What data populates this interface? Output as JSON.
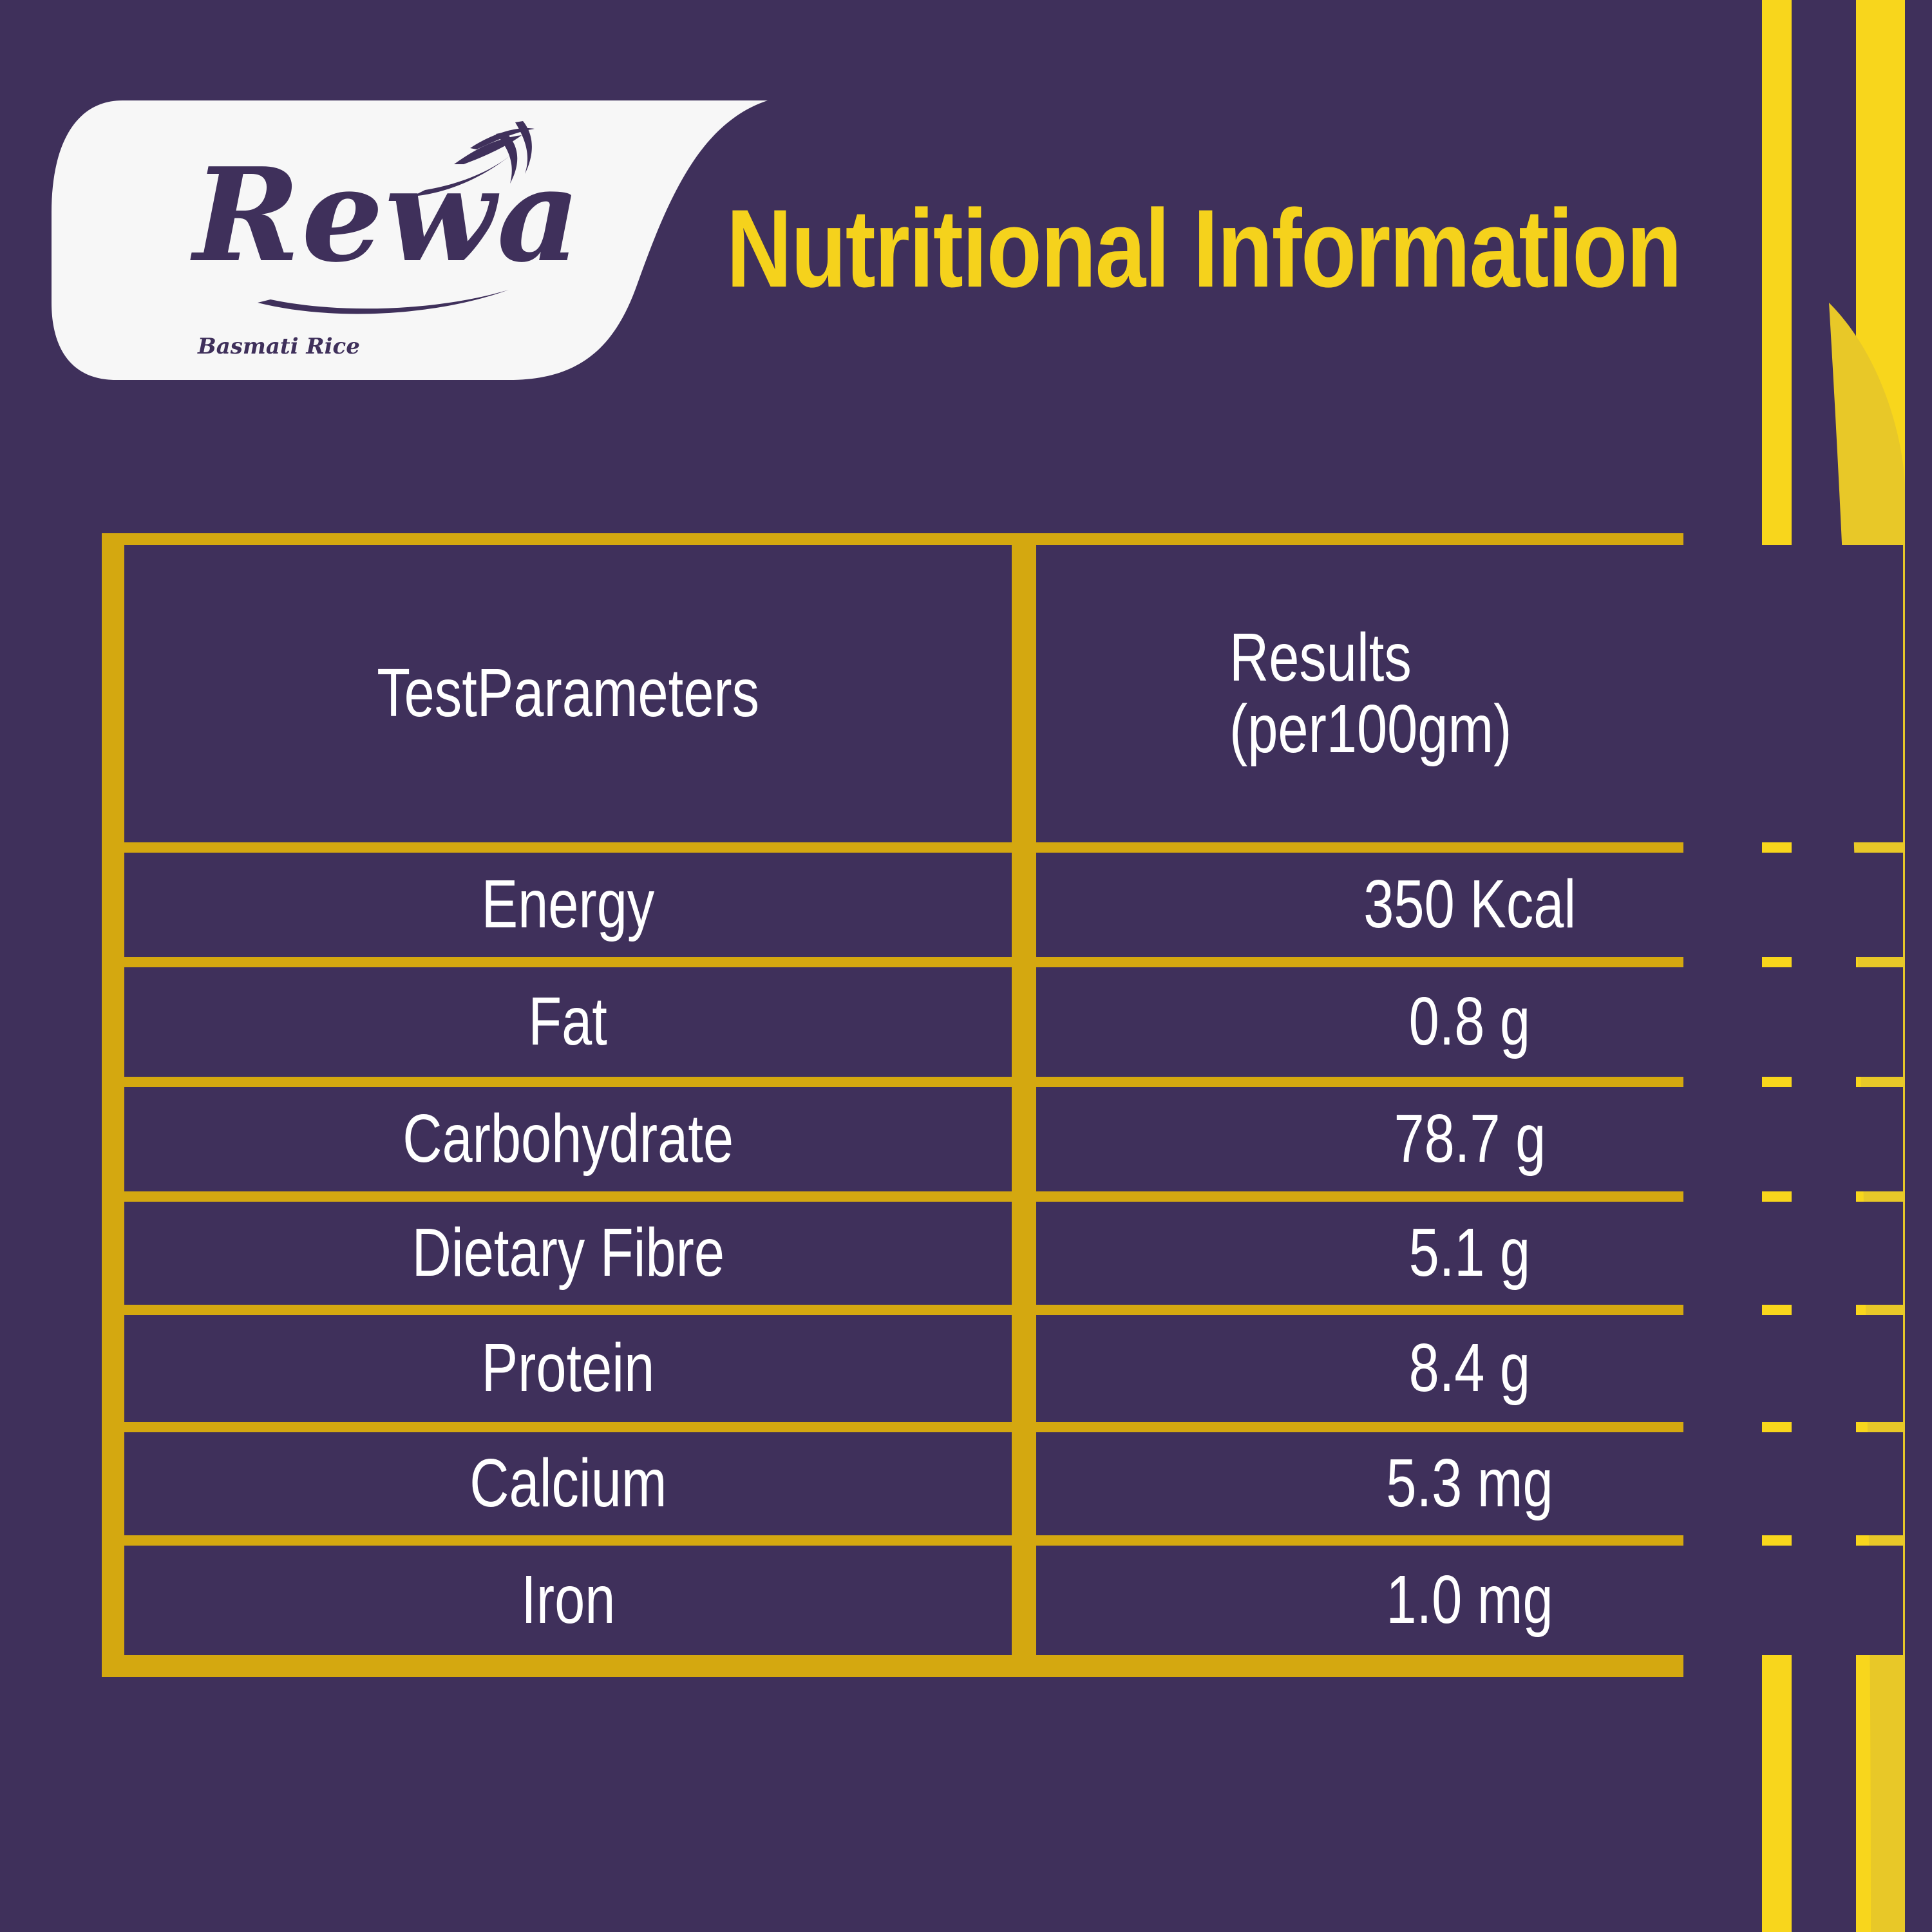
{
  "brand": {
    "name": "Rewa",
    "tagline": "Basmati Rice"
  },
  "title": "Nutritional Information",
  "table": {
    "header": {
      "parameter": "TestParameters",
      "result_line1": "Results",
      "result_line2": "(per100gm)"
    },
    "rows": [
      {
        "parameter": "Energy",
        "value": "350 Kcal"
      },
      {
        "parameter": "Fat",
        "value": "0.8 g"
      },
      {
        "parameter": "Carbohydrate",
        "value": "78.7 g"
      },
      {
        "parameter": "Dietary Fibre",
        "value": "5.1 g"
      },
      {
        "parameter": "Protein",
        "value": "8.4 g"
      },
      {
        "parameter": "Calcium",
        "value": "5.3 mg"
      },
      {
        "parameter": "Iron",
        "value": "1.0 mg"
      }
    ]
  },
  "colors": {
    "background": "#3f305b",
    "accent_yellow": "#f5d21c",
    "table_border": "#d4a810",
    "text": "#ffffff"
  }
}
